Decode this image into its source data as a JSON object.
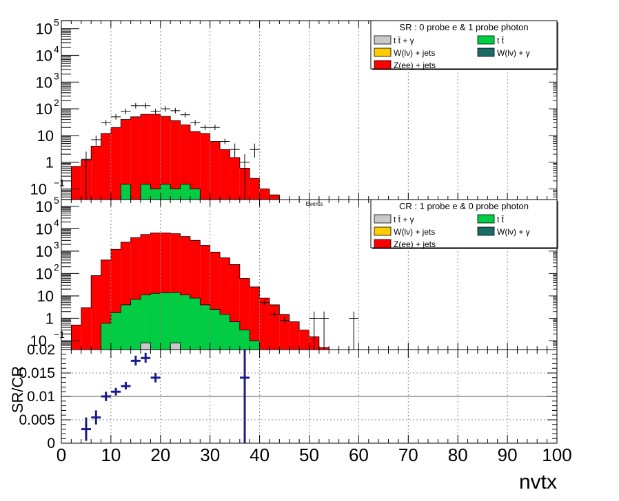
{
  "colors": {
    "ttgamma": "#c8c8c8",
    "tt": "#00cc44",
    "wjets": "#ffcc00",
    "wgamma": "#1a6b66",
    "zjets": "#ff0000",
    "data": "#000000",
    "ratio": "#1a1a8c"
  },
  "chart_data": [
    {
      "panel": "sr",
      "type": "histogram-stack",
      "log_y": true,
      "ylim": [
        0.04,
        200000
      ],
      "xlim": [
        0,
        100
      ],
      "grid": true,
      "legend_position": "top-right",
      "legend_title": "SR : 0 probe e & 1 probe photon",
      "legend": [
        {
          "key": "ttgamma",
          "label": "t t̄ + γ",
          "style": "fill"
        },
        {
          "key": "tt",
          "label": "t t̄",
          "style": "fill"
        },
        {
          "key": "wjets",
          "label": "W(lν) + jets",
          "style": "fill"
        },
        {
          "key": "wgamma",
          "label": "W(lν) + γ",
          "style": "fill"
        },
        {
          "key": "zjets",
          "label": "Z(ee) + jets",
          "style": "fill"
        }
      ],
      "bin_edges": [
        2,
        4,
        6,
        8,
        10,
        12,
        14,
        16,
        18,
        20,
        22,
        24,
        26,
        28,
        30,
        32,
        34,
        36,
        38,
        40,
        42,
        44
      ],
      "stack": [
        {
          "key": "tt",
          "values": [
            0,
            0,
            0,
            0,
            0,
            0.15,
            0,
            0.15,
            0.1,
            0.15,
            0.1,
            0.15,
            0.1,
            0,
            0,
            0,
            0,
            0,
            0,
            0,
            0
          ]
        },
        {
          "key": "zjets",
          "values": [
            0.7,
            1.2,
            4,
            12,
            20,
            40,
            50,
            62,
            62,
            52,
            36,
            25,
            14,
            12,
            6,
            3,
            1.5,
            0.6,
            0.25,
            0.1,
            0.06
          ]
        }
      ],
      "data_points": [
        {
          "x": 5,
          "y": 1.3,
          "ylo": 0.01,
          "yhi": 2.5
        },
        {
          "x": 7,
          "y": 7,
          "ylo": 4,
          "yhi": 10
        },
        {
          "x": 9,
          "y": 30
        },
        {
          "x": 11,
          "y": 50
        },
        {
          "x": 13,
          "y": 80
        },
        {
          "x": 15,
          "y": 130
        },
        {
          "x": 17,
          "y": 130
        },
        {
          "x": 19,
          "y": 80
        },
        {
          "x": 21,
          "y": 100
        },
        {
          "x": 23,
          "y": 85
        },
        {
          "x": 25,
          "y": 60
        },
        {
          "x": 27,
          "y": 30
        },
        {
          "x": 29,
          "y": 20
        },
        {
          "x": 31,
          "y": 20
        },
        {
          "x": 33,
          "y": 6
        },
        {
          "x": 35,
          "y": 3,
          "ylo": 1.5,
          "yhi": 5
        },
        {
          "x": 37,
          "y": 1,
          "ylo": 0.01,
          "yhi": 2
        },
        {
          "x": 39,
          "y": 3,
          "ylo": 1.5,
          "yhi": 5
        }
      ],
      "y_ticks": [
        {
          "v": 0.1,
          "label": "10",
          "exp": "−1"
        },
        {
          "v": 1,
          "label": "1"
        },
        {
          "v": 10,
          "label": "10"
        },
        {
          "v": 100,
          "label": "10",
          "exp": "2"
        },
        {
          "v": 1000,
          "label": "10",
          "exp": "3"
        },
        {
          "v": 10000,
          "label": "10",
          "exp": "4"
        },
        {
          "v": 100000,
          "label": "10",
          "exp": "5"
        }
      ]
    },
    {
      "panel": "cr",
      "type": "histogram-stack",
      "log_y": true,
      "ylim": [
        0.04,
        200000
      ],
      "xlim": [
        0,
        100
      ],
      "grid": true,
      "ylabel": "Events",
      "legend_position": "top-right",
      "legend_title": "CR : 1 probe e & 0 probe photon",
      "legend": [
        {
          "key": "ttgamma",
          "label": "t t̄ + γ",
          "style": "fill"
        },
        {
          "key": "tt",
          "label": "t t̄",
          "style": "fill"
        },
        {
          "key": "wjets",
          "label": "W(lν) + jets",
          "style": "fill"
        },
        {
          "key": "wgamma",
          "label": "W(lν) + γ",
          "style": "fill"
        },
        {
          "key": "zjets",
          "label": "Z(ee) + jets",
          "style": "fill"
        }
      ],
      "bin_edges": [
        2,
        4,
        6,
        8,
        10,
        12,
        14,
        16,
        18,
        20,
        22,
        24,
        26,
        28,
        30,
        32,
        34,
        36,
        38,
        40,
        42,
        44,
        46,
        48,
        50,
        52,
        54
      ],
      "stack": [
        {
          "key": "ttgamma",
          "values": [
            0,
            0,
            0,
            0,
            0,
            0,
            0,
            0.08,
            0,
            0,
            0.08,
            0,
            0,
            0,
            0,
            0,
            0,
            0,
            0,
            0,
            0,
            0,
            0,
            0,
            0,
            0
          ]
        },
        {
          "key": "tt",
          "values": [
            0,
            0,
            0,
            0.6,
            1.8,
            4,
            7,
            11,
            13,
            14,
            14,
            11,
            8,
            4,
            2.5,
            1.5,
            0.7,
            0.3,
            0.1,
            0,
            0,
            0,
            0,
            0,
            0,
            0
          ]
        },
        {
          "key": "zjets",
          "values": [
            0.5,
            3,
            80,
            400,
            1200,
            2500,
            4000,
            5500,
            6500,
            6500,
            6000,
            4500,
            3000,
            1800,
            900,
            500,
            250,
            60,
            25,
            8,
            4,
            1.5,
            0.7,
            0.3,
            0.15,
            0.05
          ]
        }
      ],
      "data_points": [
        {
          "x": 41,
          "y": 5
        },
        {
          "x": 43,
          "y": 1.5
        },
        {
          "x": 45,
          "y": 0.8
        },
        {
          "x": 51,
          "y": 1,
          "ylo": 0.01,
          "yhi": 2
        },
        {
          "x": 53,
          "y": 1,
          "ylo": 0.01,
          "yhi": 2
        },
        {
          "x": 59,
          "y": 1,
          "ylo": 0.01,
          "yhi": 2
        }
      ],
      "y_ticks": [
        {
          "v": 0.1,
          "label": "10",
          "exp": "−1"
        },
        {
          "v": 1,
          "label": "1"
        },
        {
          "v": 10,
          "label": "10"
        },
        {
          "v": 100,
          "label": "10",
          "exp": "2"
        },
        {
          "v": 1000,
          "label": "10",
          "exp": "3"
        },
        {
          "v": 10000,
          "label": "10",
          "exp": "4"
        },
        {
          "v": 100000,
          "label": "10",
          "exp": "5"
        }
      ]
    },
    {
      "panel": "ratio",
      "type": "scatter",
      "ylabel": "SR/CR",
      "xlabel": "nvtx",
      "ylim": [
        0,
        0.02
      ],
      "xlim": [
        0,
        100
      ],
      "grid": true,
      "points": [
        {
          "x": 5,
          "y": 0.003,
          "ylo": 0.0005,
          "yhi": 0.0055
        },
        {
          "x": 7,
          "y": 0.0055,
          "ylo": 0.004,
          "yhi": 0.007
        },
        {
          "x": 9,
          "y": 0.01,
          "ylo": 0.009,
          "yhi": 0.011
        },
        {
          "x": 11,
          "y": 0.011,
          "ylo": 0.0102,
          "yhi": 0.0118
        },
        {
          "x": 13,
          "y": 0.0122,
          "ylo": 0.0115,
          "yhi": 0.0131
        },
        {
          "x": 15,
          "y": 0.0176,
          "ylo": 0.0166,
          "yhi": 0.0187
        },
        {
          "x": 17,
          "y": 0.0182,
          "ylo": 0.0172,
          "yhi": 0.0193
        },
        {
          "x": 19,
          "y": 0.014,
          "ylo": 0.013,
          "yhi": 0.015
        },
        {
          "x": 37,
          "y": 0.014,
          "ylo": 0,
          "yhi": 0.02
        }
      ],
      "y_ticks": [
        {
          "v": 0,
          "label": "0"
        },
        {
          "v": 0.005,
          "label": "0.005"
        },
        {
          "v": 0.01,
          "label": "0.01"
        },
        {
          "v": 0.015,
          "label": "0.015"
        },
        {
          "v": 0.02,
          "label": "0.02"
        }
      ],
      "x_ticks": [
        0,
        10,
        20,
        30,
        40,
        50,
        60,
        70,
        80,
        90,
        100
      ]
    }
  ]
}
